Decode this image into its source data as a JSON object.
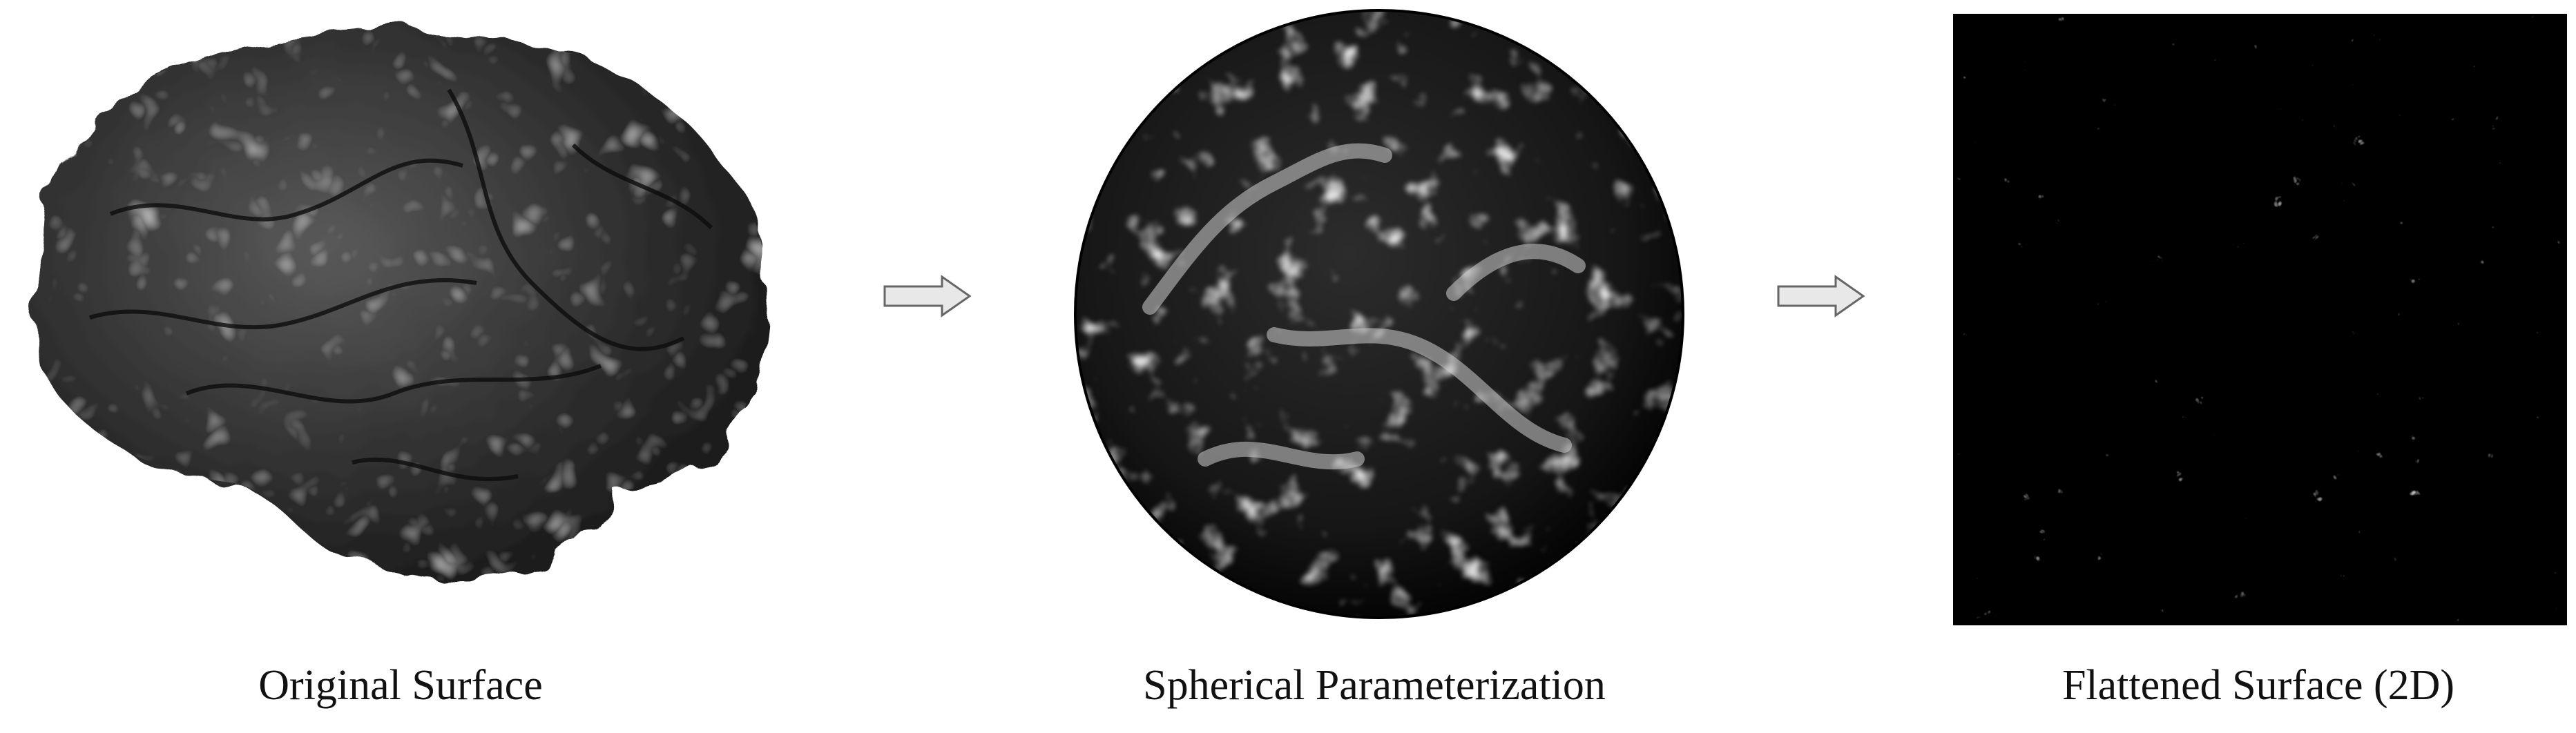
{
  "panels": [
    {
      "id": "original",
      "caption": "Original Surface"
    },
    {
      "id": "spherical",
      "caption": "Spherical Parameterization"
    },
    {
      "id": "flattened",
      "caption": "Flattened Surface (2D)"
    }
  ],
  "colors": {
    "background": "#ffffff",
    "surface_dark": "#2a2a2a",
    "surface_light": "#d8d8d8",
    "sphere": "#161616",
    "flat": "#000000",
    "arrow_fill": "#e8e8e8",
    "arrow_stroke": "#666666"
  },
  "icons": [
    "right-arrow-icon",
    "right-arrow-icon"
  ]
}
